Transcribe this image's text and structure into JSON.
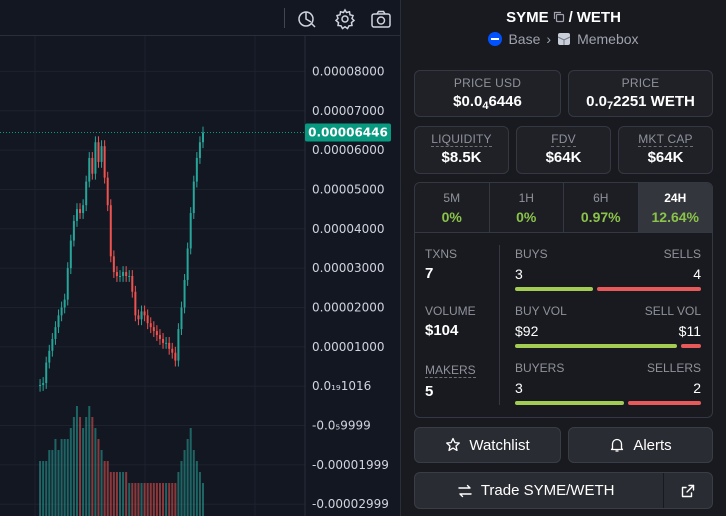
{
  "toolbar": {
    "icons": [
      "indicators-icon",
      "settings-gear-icon",
      "camera-icon"
    ]
  },
  "chart": {
    "price_axis_labels": [
      "0.00008000",
      "0.00007000",
      "0.00006000",
      "0.00005000",
      "0.00004000",
      "0.00003000",
      "0.00002000",
      "0.00001000",
      "0.0₁₉1016",
      "-0.0₅9999",
      "-0.00001999",
      "-0.00002999"
    ],
    "current_price_tag": "0.00006446",
    "up_color": "#26a69a",
    "down_color": "#ef5350",
    "tag_color": "#089981"
  },
  "chart_data": {
    "type": "candlestick",
    "title": "",
    "yaxis_ticks": [
      8e-05,
      7e-05,
      6e-05,
      5e-05,
      4e-05,
      3e-05,
      2e-05,
      1e-05,
      0.0,
      -1e-05,
      -2e-05,
      -3e-05
    ],
    "ylim": [
      -3.3e-05,
      8.9e-05
    ],
    "last_price": 6.446e-05,
    "close_path": [
      1e-07,
      3e-07,
      8e-07,
      6e-06,
      9e-06,
      1.2e-05,
      1.5e-05,
      1.8e-05,
      2e-05,
      2.2e-05,
      3e-05,
      3.7e-05,
      4.2e-05,
      4.5e-05,
      4.4e-05,
      4.6e-05,
      5.2e-05,
      5.8e-05,
      5.4e-05,
      6.2e-05,
      5.7e-05,
      6.1e-05,
      5.3e-05,
      4.6e-05,
      3.3e-05,
      2.9e-05,
      2.8e-05,
      2.8e-05,
      2.9e-05,
      2.8e-05,
      2.8e-05,
      2.4e-05,
      1.8e-05,
      1.7e-05,
      1.9e-05,
      1.8e-05,
      1.6e-05,
      1.5e-05,
      1.4e-05,
      1.3e-05,
      1.2e-05,
      1.1e-05,
      1.1e-05,
      9.5e-06,
      8.5e-06,
      6.5e-06,
      1.45e-05,
      2e-05,
      2.7e-05,
      3.5e-05,
      4.4e-05,
      5.2e-05,
      5.8e-05,
      6.2e-05,
      6.446e-05
    ],
    "volume_shape": [
      0.5,
      0.5,
      0.5,
      0.5,
      0.6,
      0.6,
      0.7,
      0.6,
      0.7,
      0.7,
      0.7,
      0.8,
      0.9,
      1.0,
      0.9,
      0.8,
      0.9,
      1.0,
      0.9,
      0.8,
      0.7,
      0.6,
      0.5,
      0.5,
      0.4,
      0.4,
      0.4,
      0.4,
      0.4,
      0.4,
      0.3,
      0.3,
      0.3,
      0.3,
      0.3,
      0.3,
      0.3,
      0.3,
      0.3,
      0.3,
      0.3,
      0.3,
      0.3,
      0.3,
      0.3,
      0.3,
      0.4,
      0.5,
      0.6,
      0.7,
      0.8,
      0.6,
      0.5,
      0.4,
      0.3
    ]
  },
  "pair": {
    "base_symbol": "SYME",
    "separator": "/",
    "quote_symbol": "WETH",
    "chain": "Base",
    "chevron": "›",
    "dex": "Memebox"
  },
  "stats": {
    "price_usd_label": "PRICE USD",
    "price_usd_prefix": "$0.0",
    "price_usd_zeros": "4",
    "price_usd_rest": "6446",
    "price_label": "PRICE",
    "price_prefix": "0.0",
    "price_zeros": "7",
    "price_rest": "2251 WETH",
    "liquidity_label": "LIQUIDITY",
    "liquidity_value": "$8.5K",
    "fdv_label": "FDV",
    "fdv_value": "$64K",
    "mktcap_label": "MKT CAP",
    "mktcap_value": "$64K"
  },
  "timeframes": [
    {
      "label": "5M",
      "change": "0%"
    },
    {
      "label": "1H",
      "change": "0%"
    },
    {
      "label": "6H",
      "change": "0.97%"
    },
    {
      "label": "24H",
      "change": "12.64%"
    }
  ],
  "txns": {
    "txns_label": "TXNS",
    "txns_value": "7",
    "buys_label": "BUYS",
    "buys_value": "3",
    "sells_label": "SELLS",
    "sells_value": "4",
    "buys_share": 0.43,
    "volume_label": "VOLUME",
    "volume_value": "$104",
    "buy_vol_label": "BUY VOL",
    "buy_vol_value": "$92",
    "sell_vol_label": "SELL VOL",
    "sell_vol_value": "$11",
    "buy_vol_share": 0.89,
    "makers_label": "MAKERS",
    "makers_value": "5",
    "buyers_label": "BUYERS",
    "buyers_value": "3",
    "sellers_label": "SELLERS",
    "sellers_value": "2",
    "buyers_share": 0.6
  },
  "buttons": {
    "watchlist": "Watchlist",
    "alerts": "Alerts",
    "trade": "Trade SYME/WETH"
  },
  "colors": {
    "buy": "#a3cc53",
    "sell": "#e8595a",
    "positive": "#8bc34a"
  }
}
